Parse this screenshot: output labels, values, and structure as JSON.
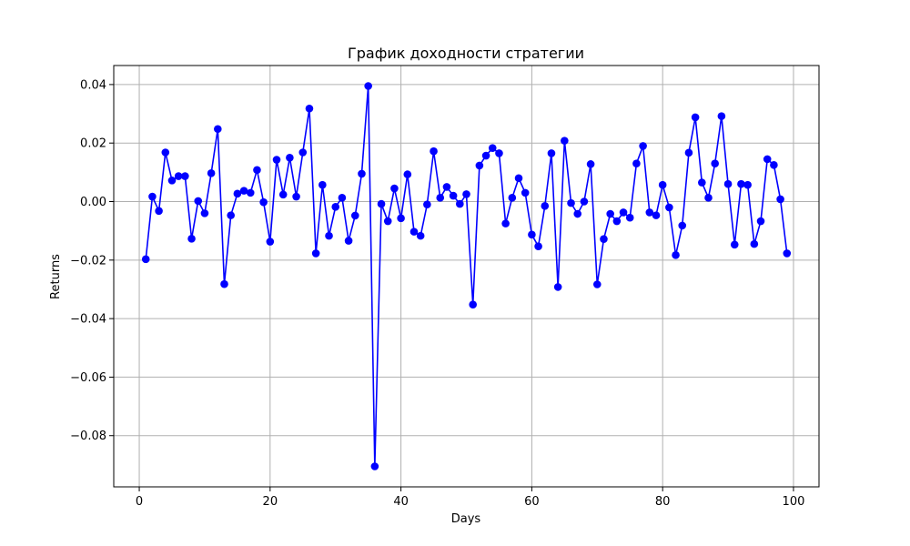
{
  "chart_data": {
    "type": "line",
    "title": "График доходности стратегии",
    "xlabel": "Days",
    "ylabel": "Returns",
    "xlim": [
      -3.9,
      103.9
    ],
    "ylim": [
      -0.0975,
      0.0465
    ],
    "xticks": [
      0,
      20,
      40,
      60,
      80,
      100
    ],
    "yticks": [
      -0.08,
      -0.06,
      -0.04,
      -0.02,
      0.0,
      0.02,
      0.04
    ],
    "xtick_labels": [
      "0",
      "20",
      "40",
      "60",
      "80",
      "100"
    ],
    "ytick_labels": [
      "−0.08",
      "−0.06",
      "−0.04",
      "−0.02",
      "0.00",
      "0.02",
      "0.04"
    ],
    "grid": true,
    "series": [
      {
        "color": "#0000ff",
        "marker": "circle",
        "x": [
          1,
          2,
          3,
          4,
          5,
          6,
          7,
          8,
          9,
          10,
          11,
          12,
          13,
          14,
          15,
          16,
          17,
          18,
          19,
          20,
          21,
          22,
          23,
          24,
          25,
          26,
          27,
          28,
          29,
          30,
          31,
          32,
          33,
          34,
          35,
          36,
          37,
          38,
          39,
          40,
          41,
          42,
          43,
          44,
          45,
          46,
          47,
          48,
          49,
          50,
          51,
          52,
          53,
          54,
          55,
          56,
          57,
          58,
          59,
          60,
          61,
          62,
          63,
          64,
          65,
          66,
          67,
          68,
          69,
          70,
          71,
          72,
          73,
          74,
          75,
          76,
          77,
          78,
          79,
          80,
          81,
          82,
          83,
          84,
          85,
          86,
          87,
          88,
          89,
          90,
          91,
          92,
          93,
          94,
          95,
          96,
          97,
          98,
          99
        ],
        "values": [
          -0.0197,
          0.0017,
          -0.0032,
          0.0168,
          0.0072,
          0.0087,
          0.0087,
          -0.0127,
          0.0002,
          -0.004,
          0.0097,
          0.0248,
          -0.0282,
          -0.0047,
          0.0027,
          0.0037,
          0.003,
          0.0108,
          -0.0002,
          -0.0137,
          0.0143,
          0.0024,
          0.015,
          0.0017,
          0.0168,
          0.0318,
          -0.0177,
          0.0057,
          -0.0117,
          -0.0018,
          0.0013,
          -0.0134,
          -0.0048,
          0.0095,
          0.0395,
          -0.0905,
          -0.0008,
          -0.0067,
          0.0045,
          -0.0057,
          0.0093,
          -0.0103,
          -0.0117,
          -0.001,
          0.0172,
          0.0013,
          0.005,
          0.002,
          -0.0008,
          0.0025,
          -0.0352,
          0.0123,
          0.0157,
          0.0183,
          0.0165,
          -0.0075,
          0.0013,
          0.008,
          0.003,
          -0.0113,
          -0.0153,
          -0.0015,
          0.0165,
          -0.0292,
          0.0208,
          -0.0005,
          -0.0042,
          0.0,
          0.0128,
          -0.0283,
          -0.0128,
          -0.0042,
          -0.0067,
          -0.0037,
          -0.0055,
          0.013,
          0.019,
          -0.0037,
          -0.0047,
          0.0057,
          -0.002,
          -0.0183,
          -0.0082,
          0.0167,
          0.0288,
          0.0065,
          0.0013,
          0.013,
          0.0292,
          0.006,
          -0.0147,
          0.006,
          0.0057,
          -0.0145,
          -0.0067,
          0.0145,
          0.0125,
          0.0008,
          -0.0177
        ]
      }
    ]
  }
}
